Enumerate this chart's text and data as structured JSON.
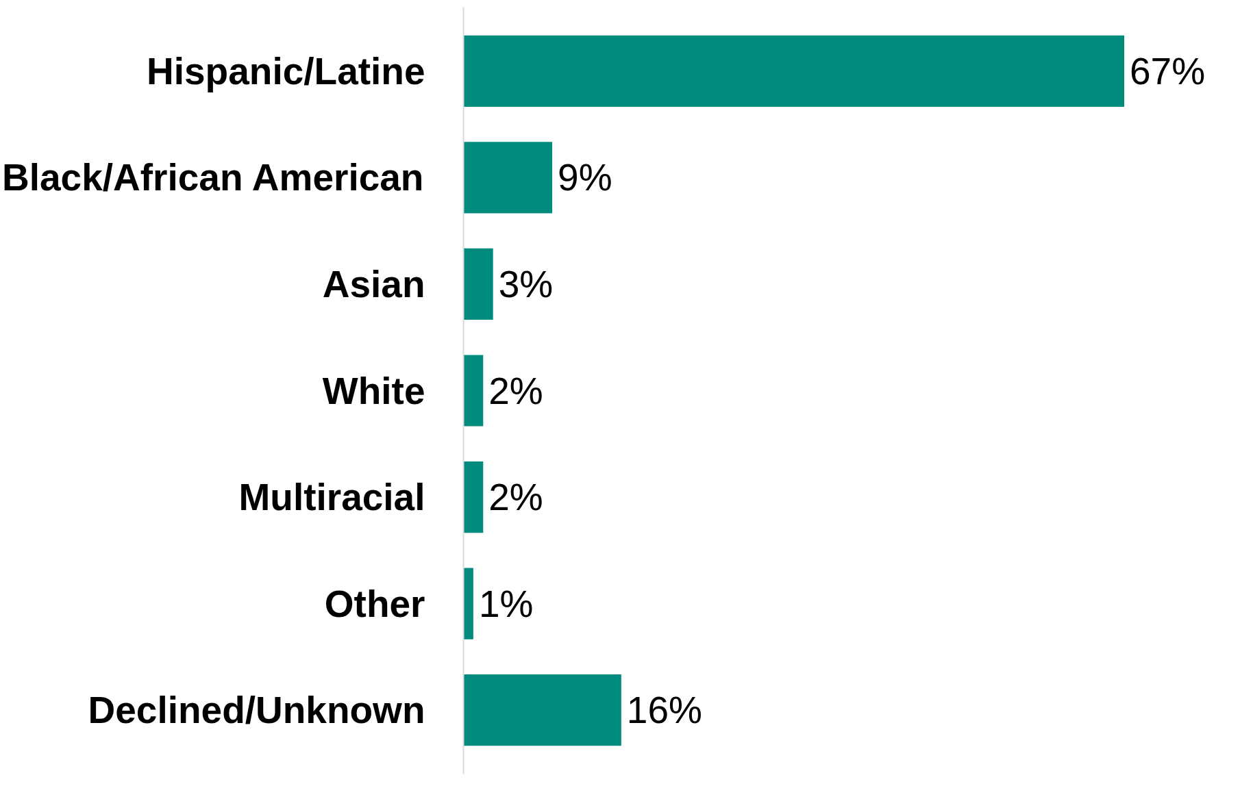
{
  "chart_data": {
    "type": "bar",
    "orientation": "horizontal",
    "categories": [
      "Hispanic/Latine",
      "Black/African American",
      "Asian",
      "White",
      "Multiracial",
      "Other",
      "Declined/Unknown"
    ],
    "values": [
      67,
      9,
      3,
      2,
      2,
      1,
      16
    ],
    "value_labels": [
      "67%",
      "9%",
      "3%",
      "2%",
      "2%",
      "1%",
      "16%"
    ],
    "color": "#008b7f",
    "grid": false,
    "tick_labels": "y"
  }
}
